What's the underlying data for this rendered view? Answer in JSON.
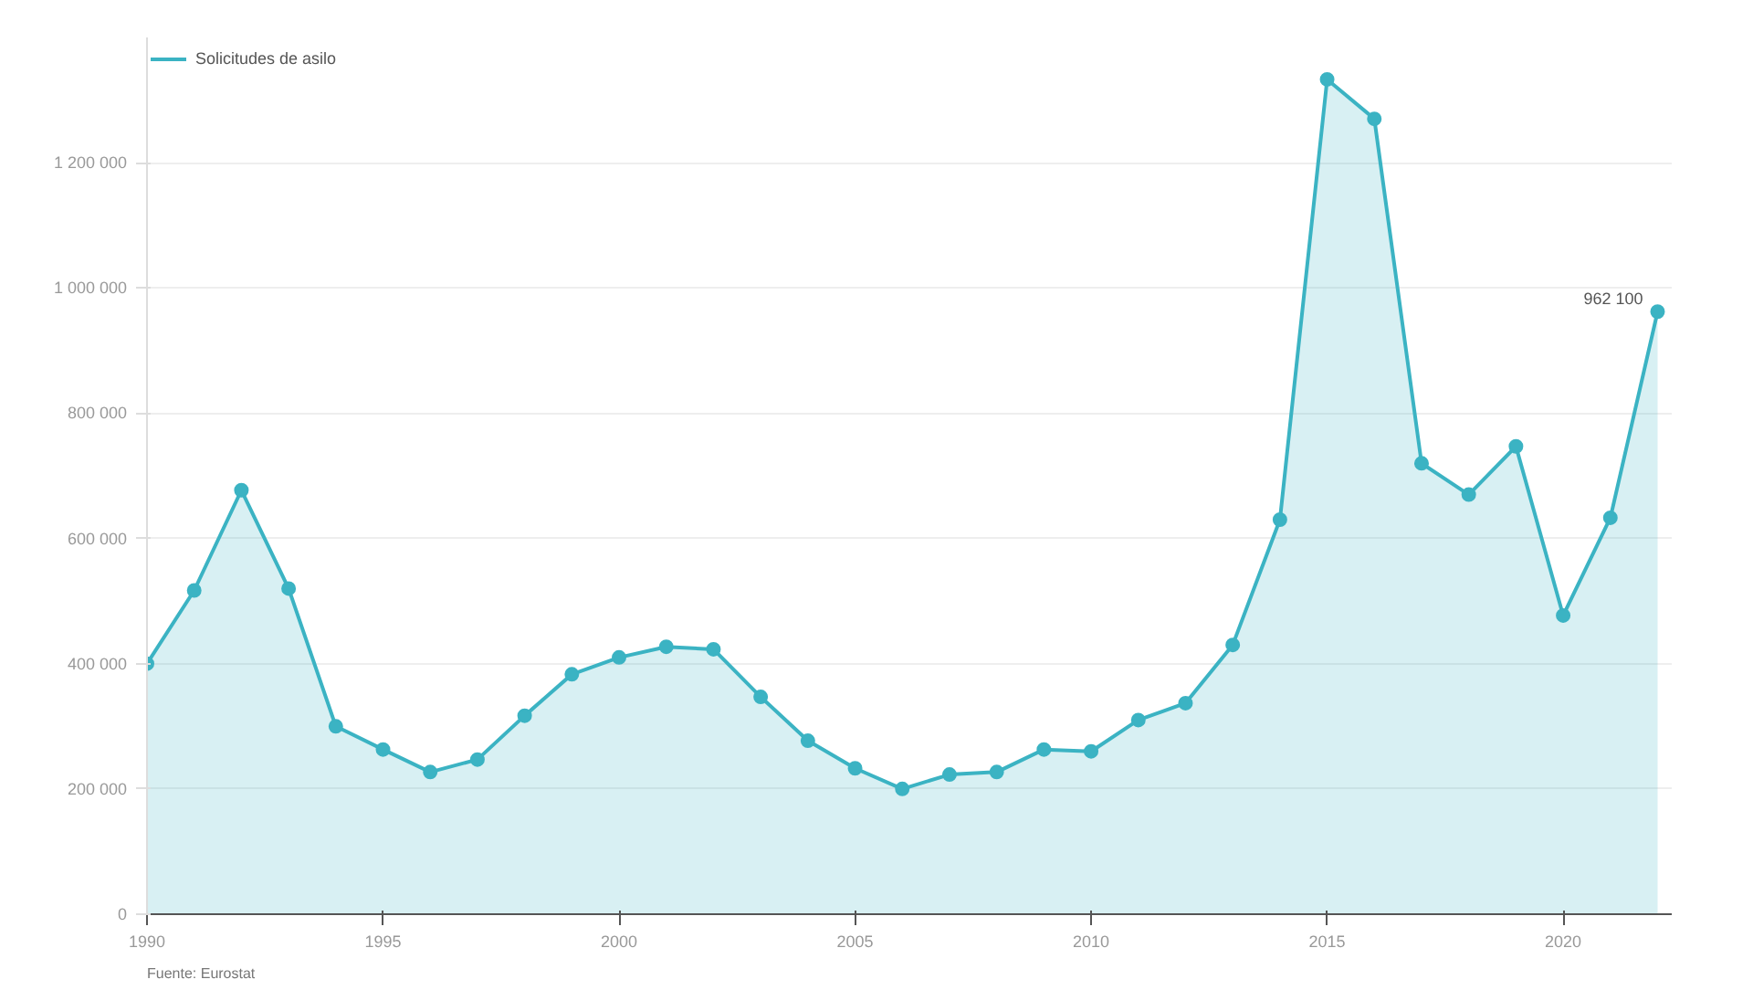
{
  "chart_data": {
    "type": "area",
    "x": [
      1990,
      1991,
      1992,
      1993,
      1994,
      1995,
      1996,
      1997,
      1998,
      1999,
      2000,
      2001,
      2002,
      2003,
      2004,
      2005,
      2006,
      2007,
      2008,
      2009,
      2010,
      2011,
      2012,
      2013,
      2014,
      2015,
      2016,
      2017,
      2018,
      2019,
      2020,
      2021,
      2022
    ],
    "series": [
      {
        "name": "Solicitudes de asilo",
        "color": "#3bb3c3",
        "values": [
          400000,
          517000,
          677000,
          520000,
          300000,
          263000,
          227000,
          247000,
          317000,
          383000,
          410000,
          427000,
          423000,
          347000,
          277000,
          233000,
          200000,
          223000,
          227000,
          263000,
          260000,
          310000,
          337000,
          430000,
          630000,
          1333000,
          1270000,
          720000,
          670000,
          747000,
          477000,
          633000,
          962100
        ],
        "value_labels": [
          null,
          null,
          null,
          null,
          null,
          null,
          null,
          null,
          null,
          null,
          null,
          null,
          null,
          null,
          null,
          null,
          null,
          null,
          null,
          null,
          null,
          null,
          null,
          null,
          null,
          null,
          null,
          null,
          null,
          null,
          null,
          null,
          "962 100"
        ]
      }
    ],
    "xlim": [
      1990,
      2022.3
    ],
    "ylim": [
      0,
      1400000
    ],
    "xticks": [
      1990,
      1995,
      2000,
      2005,
      2010,
      2015,
      2020
    ],
    "yticks": [
      {
        "value": 0,
        "label": "0"
      },
      {
        "value": 200000,
        "label": "200 000"
      },
      {
        "value": 400000,
        "label": "400 000"
      },
      {
        "value": 600000,
        "label": "600 000"
      },
      {
        "value": 800000,
        "label": "800 000"
      },
      {
        "value": 1000000,
        "label": "1 000 000"
      },
      {
        "value": 1200000,
        "label": "1 200 000"
      }
    ],
    "grid": "y",
    "legend": "top left",
    "marker": "circle",
    "annotations": [
      "Fuente: Eurostat"
    ]
  }
}
